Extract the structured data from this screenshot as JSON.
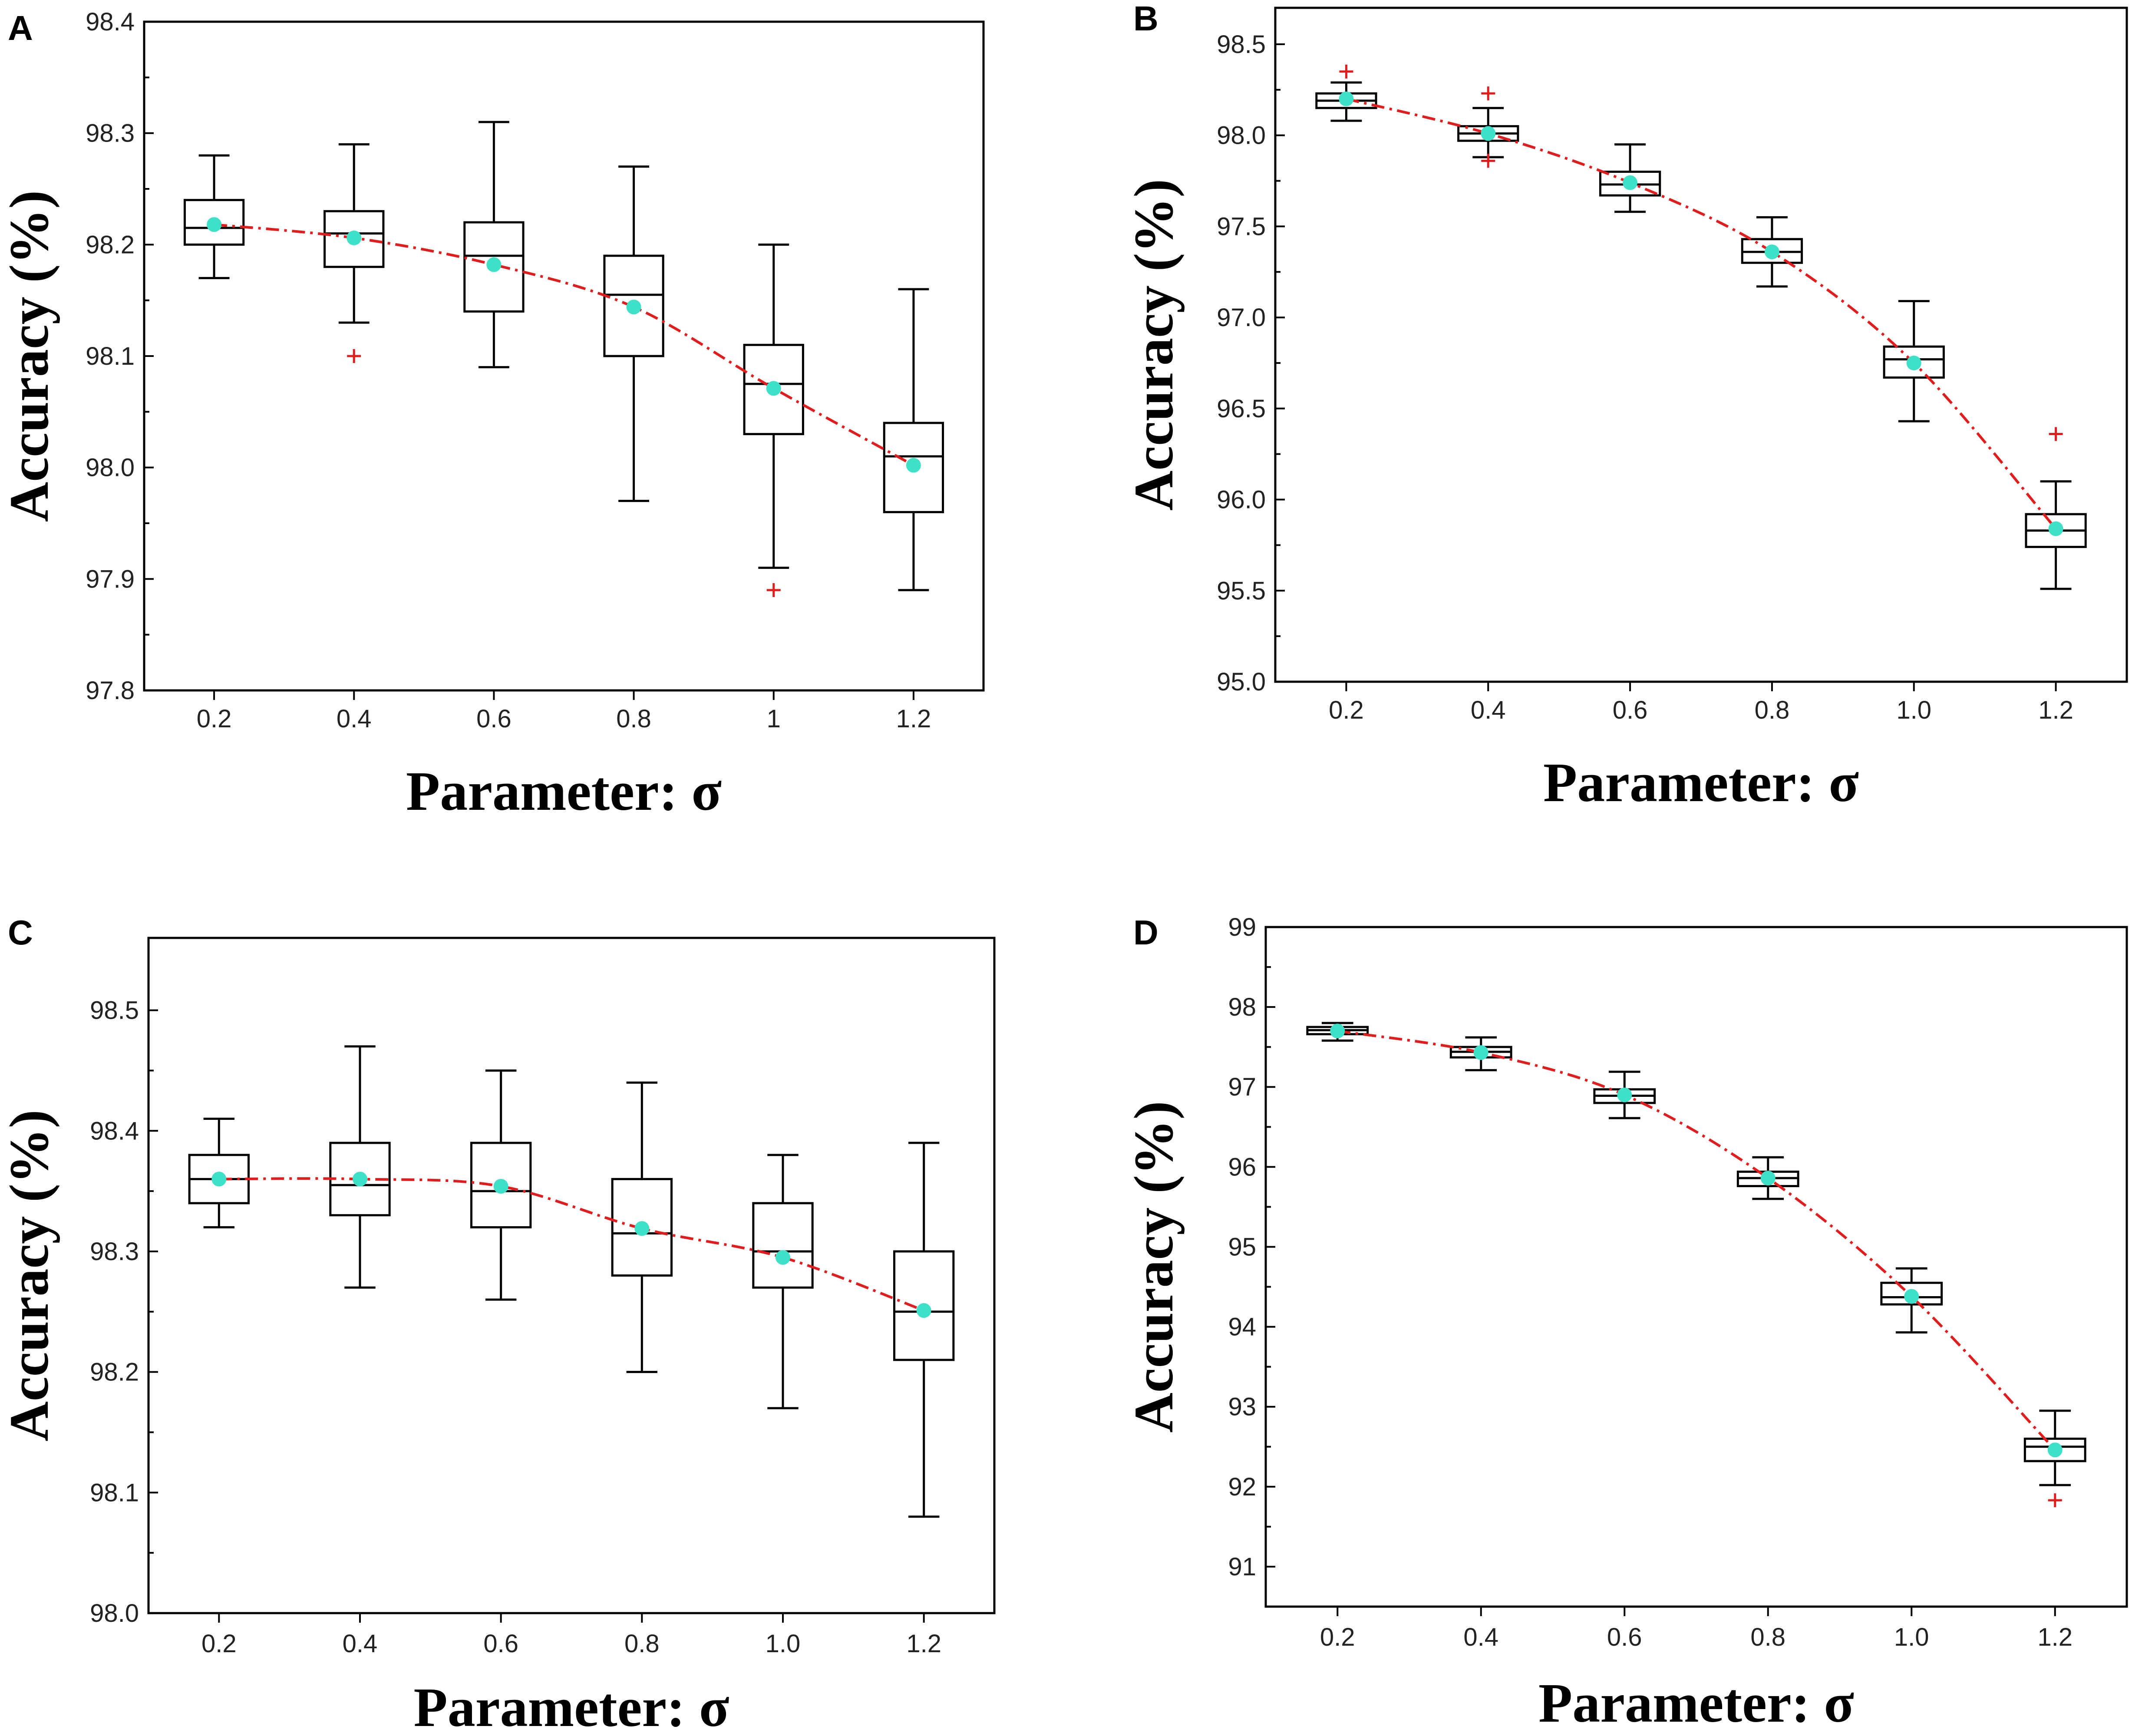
{
  "figure": {
    "mean_color": "#3ee0c8",
    "line_color": "#e01c1c"
  },
  "chart_data": [
    {
      "panel": "A",
      "type": "box",
      "title": "",
      "xlabel": "Parameter: σ",
      "ylabel": "Accuracy (%)",
      "ylim": [
        97.8,
        98.4
      ],
      "yticks": [
        "97.8",
        "97.9",
        "98.0",
        "98.1",
        "98.2",
        "98.3",
        "98.4"
      ],
      "categories": [
        "0.2",
        "0.4",
        "0.6",
        "0.8",
        "1",
        "1.2"
      ],
      "boxes": [
        {
          "min": 98.17,
          "q1": 98.2,
          "median": 98.215,
          "q3": 98.24,
          "max": 98.28,
          "mean": 98.218,
          "outliers": []
        },
        {
          "min": 98.13,
          "q1": 98.18,
          "median": 98.21,
          "q3": 98.23,
          "max": 98.29,
          "mean": 98.206,
          "outliers": [
            98.1
          ]
        },
        {
          "min": 98.09,
          "q1": 98.14,
          "median": 98.19,
          "q3": 98.22,
          "max": 98.31,
          "mean": 98.182,
          "outliers": []
        },
        {
          "min": 97.97,
          "q1": 98.1,
          "median": 98.155,
          "q3": 98.19,
          "max": 98.27,
          "mean": 98.144,
          "outliers": []
        },
        {
          "min": 97.91,
          "q1": 98.03,
          "median": 98.075,
          "q3": 98.11,
          "max": 98.2,
          "mean": 98.071,
          "outliers": [
            97.89
          ]
        },
        {
          "min": 97.89,
          "q1": 97.96,
          "median": 98.01,
          "q3": 98.04,
          "max": 98.16,
          "mean": 98.002,
          "outliers": []
        }
      ]
    },
    {
      "panel": "B",
      "type": "box",
      "title": "",
      "xlabel": "Parameter: σ",
      "ylabel": "Accuracy (%)",
      "ylim": [
        95.0,
        98.7
      ],
      "yticks": [
        "95.0",
        "95.5",
        "96.0",
        "96.5",
        "97.0",
        "97.5",
        "98.0",
        "98.5"
      ],
      "categories": [
        "0.2",
        "0.4",
        "0.6",
        "0.8",
        "1.0",
        "1.2"
      ],
      "boxes": [
        {
          "min": 98.08,
          "q1": 98.15,
          "median": 98.19,
          "q3": 98.23,
          "max": 98.29,
          "mean": 98.2,
          "outliers": [
            98.35
          ]
        },
        {
          "min": 97.88,
          "q1": 97.97,
          "median": 98.01,
          "q3": 98.05,
          "max": 98.15,
          "mean": 98.01,
          "outliers": [
            98.23,
            97.86
          ]
        },
        {
          "min": 97.58,
          "q1": 97.67,
          "median": 97.73,
          "q3": 97.8,
          "max": 97.95,
          "mean": 97.74,
          "outliers": []
        },
        {
          "min": 97.17,
          "q1": 97.3,
          "median": 97.36,
          "q3": 97.43,
          "max": 97.55,
          "mean": 97.36,
          "outliers": []
        },
        {
          "min": 96.43,
          "q1": 96.67,
          "median": 96.77,
          "q3": 96.84,
          "max": 97.09,
          "mean": 96.75,
          "outliers": []
        },
        {
          "min": 95.51,
          "q1": 95.74,
          "median": 95.83,
          "q3": 95.92,
          "max": 96.1,
          "mean": 95.84,
          "outliers": [
            96.36
          ]
        }
      ]
    },
    {
      "panel": "C",
      "type": "box",
      "title": "",
      "xlabel": "Parameter: σ",
      "ylabel": "Accuracy (%)",
      "ylim": [
        98.0,
        98.56
      ],
      "yticks": [
        "98.0",
        "98.1",
        "98.2",
        "98.3",
        "98.4",
        "98.5"
      ],
      "categories": [
        "0.2",
        "0.4",
        "0.6",
        "0.8",
        "1.0",
        "1.2"
      ],
      "boxes": [
        {
          "min": 98.32,
          "q1": 98.34,
          "median": 98.36,
          "q3": 98.38,
          "max": 98.41,
          "mean": 98.36,
          "outliers": []
        },
        {
          "min": 98.27,
          "q1": 98.33,
          "median": 98.355,
          "q3": 98.39,
          "max": 98.47,
          "mean": 98.36,
          "outliers": []
        },
        {
          "min": 98.26,
          "q1": 98.32,
          "median": 98.35,
          "q3": 98.39,
          "max": 98.45,
          "mean": 98.354,
          "outliers": []
        },
        {
          "min": 98.2,
          "q1": 98.28,
          "median": 98.315,
          "q3": 98.36,
          "max": 98.44,
          "mean": 98.319,
          "outliers": []
        },
        {
          "min": 98.17,
          "q1": 98.27,
          "median": 98.3,
          "q3": 98.34,
          "max": 98.38,
          "mean": 98.295,
          "outliers": []
        },
        {
          "min": 98.08,
          "q1": 98.21,
          "median": 98.25,
          "q3": 98.3,
          "max": 98.39,
          "mean": 98.251,
          "outliers": []
        }
      ]
    },
    {
      "panel": "D",
      "type": "box",
      "title": "",
      "xlabel": "Parameter: σ",
      "ylabel": "Accuracy (%)",
      "ylim": [
        90.5,
        99.0
      ],
      "yticks": [
        "91",
        "92",
        "93",
        "94",
        "95",
        "96",
        "97",
        "98",
        "99"
      ],
      "categories": [
        "0.2",
        "0.4",
        "0.6",
        "0.8",
        "1.0",
        "1.2"
      ],
      "boxes": [
        {
          "min": 97.58,
          "q1": 97.66,
          "median": 97.71,
          "q3": 97.75,
          "max": 97.8,
          "mean": 97.7,
          "outliers": []
        },
        {
          "min": 97.21,
          "q1": 97.37,
          "median": 97.44,
          "q3": 97.5,
          "max": 97.62,
          "mean": 97.43,
          "outliers": []
        },
        {
          "min": 96.61,
          "q1": 96.8,
          "median": 96.89,
          "q3": 96.97,
          "max": 97.19,
          "mean": 96.9,
          "outliers": []
        },
        {
          "min": 95.6,
          "q1": 95.76,
          "median": 95.86,
          "q3": 95.94,
          "max": 96.12,
          "mean": 95.86,
          "outliers": []
        },
        {
          "min": 93.93,
          "q1": 94.28,
          "median": 94.37,
          "q3": 94.55,
          "max": 94.73,
          "mean": 94.38,
          "outliers": []
        },
        {
          "min": 92.02,
          "q1": 92.32,
          "median": 92.5,
          "q3": 92.6,
          "max": 92.95,
          "mean": 92.46,
          "outliers": [
            91.83
          ]
        }
      ]
    }
  ]
}
